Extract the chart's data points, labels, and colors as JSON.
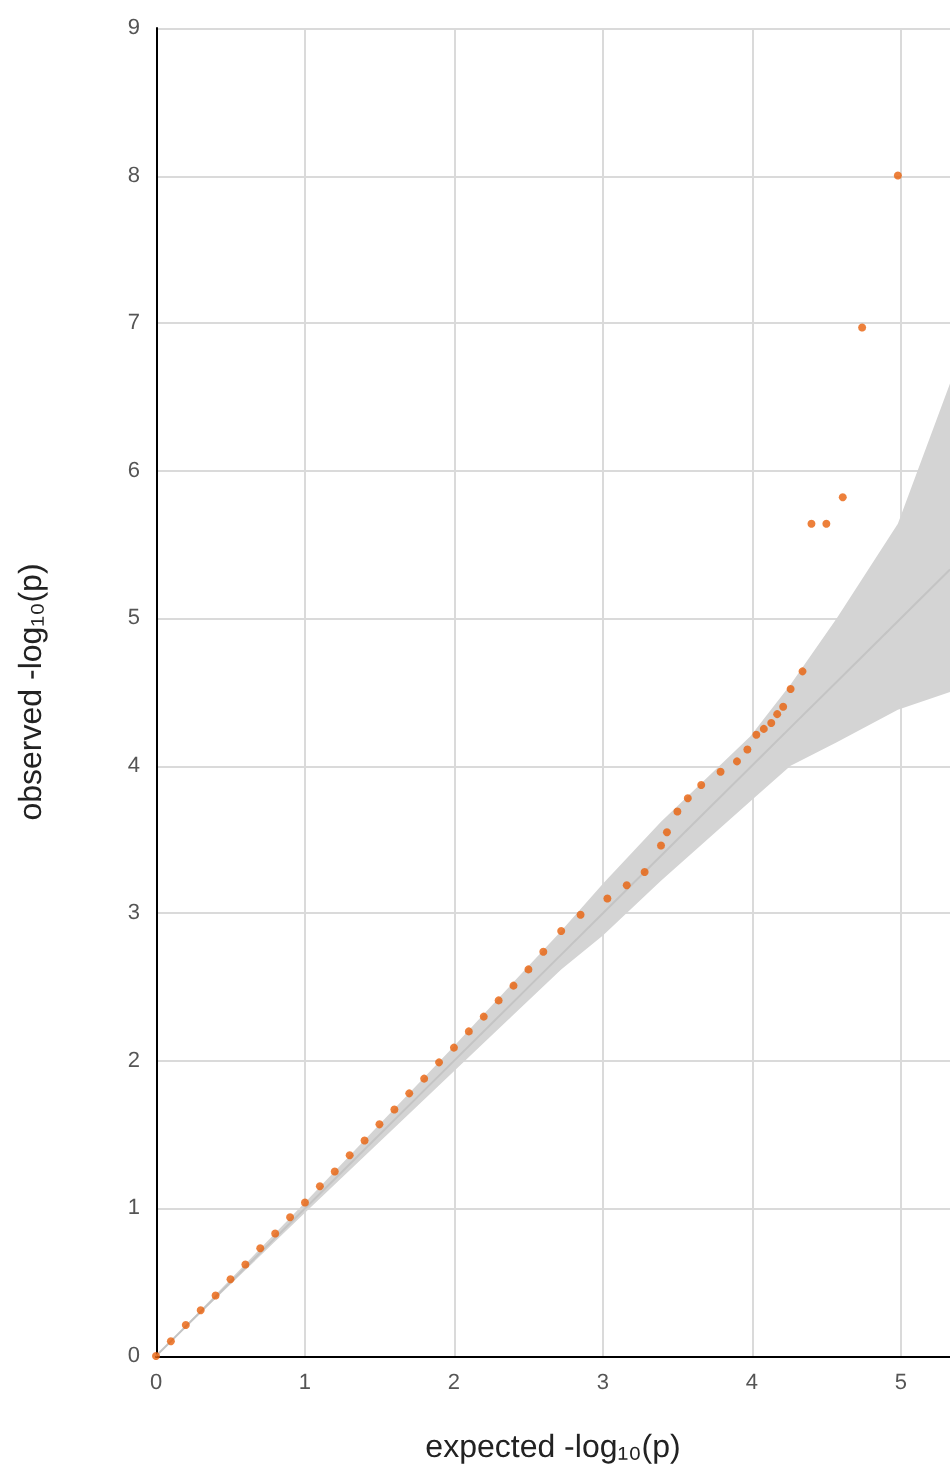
{
  "chart_data": {
    "type": "scatter",
    "xlabel": "expected -log₁₀(p)",
    "ylabel": "observed -log₁₀(p)",
    "xlim": [
      0,
      5.33
    ],
    "xticks": [
      0,
      1,
      2,
      3,
      4,
      5
    ],
    "ylim": [
      0,
      9
    ],
    "yticks": [
      0,
      1,
      2,
      3,
      4,
      5,
      6,
      7,
      8,
      9
    ],
    "grid": true,
    "marker": "circle",
    "series": [
      {
        "type": "line",
        "marker": "none",
        "color": "#d4d4d4",
        "x": [
          0,
          1,
          2,
          2.72,
          3,
          3.39,
          3.99,
          4.26,
          4.57,
          4.98,
          5.33
        ],
        "values": [
          0,
          1,
          2,
          2.72,
          3,
          3.39,
          3.99,
          4.26,
          4.57,
          4.98,
          5.33
        ],
        "lower": [
          0,
          0.97,
          1.93,
          2.62,
          2.85,
          3.22,
          3.76,
          4.0,
          4.16,
          4.38,
          4.5
        ],
        "upper": [
          0,
          1.04,
          2.1,
          2.88,
          3.2,
          3.62,
          4.2,
          4.55,
          5.0,
          5.64,
          6.59
        ]
      },
      {
        "color": "#e8600a",
        "x": [
          0,
          0.1,
          0.2,
          0.3,
          0.4,
          0.5,
          0.6,
          0.7,
          0.8,
          0.9,
          1,
          1.1,
          1.2,
          1.3,
          1.4,
          1.5,
          1.6,
          1.7,
          1.8,
          1.9,
          2,
          2.1,
          2.2,
          2.3,
          2.4,
          2.5,
          2.6,
          2.72,
          2.85,
          3.03,
          3.16,
          3.28,
          3.39,
          3.43,
          3.5,
          3.57,
          3.66,
          3.79,
          3.9,
          3.97,
          4.03,
          4.08,
          4.13,
          4.17,
          4.21,
          4.26,
          4.34,
          4.4,
          4.5,
          4.61,
          4.74,
          4.98
        ],
        "values": [
          0,
          0.1,
          0.21,
          0.31,
          0.41,
          0.52,
          0.62,
          0.73,
          0.83,
          0.94,
          1.04,
          1.15,
          1.25,
          1.36,
          1.46,
          1.57,
          1.67,
          1.78,
          1.88,
          1.99,
          2.09,
          2.2,
          2.3,
          2.41,
          2.51,
          2.62,
          2.74,
          2.88,
          2.99,
          3.1,
          3.19,
          3.28,
          3.46,
          3.55,
          3.69,
          3.78,
          3.87,
          3.96,
          4.03,
          4.11,
          4.21,
          4.25,
          4.29,
          4.35,
          4.4,
          4.52,
          4.64,
          5.64,
          5.64,
          5.82,
          6.97,
          8.0
        ]
      }
    ]
  }
}
